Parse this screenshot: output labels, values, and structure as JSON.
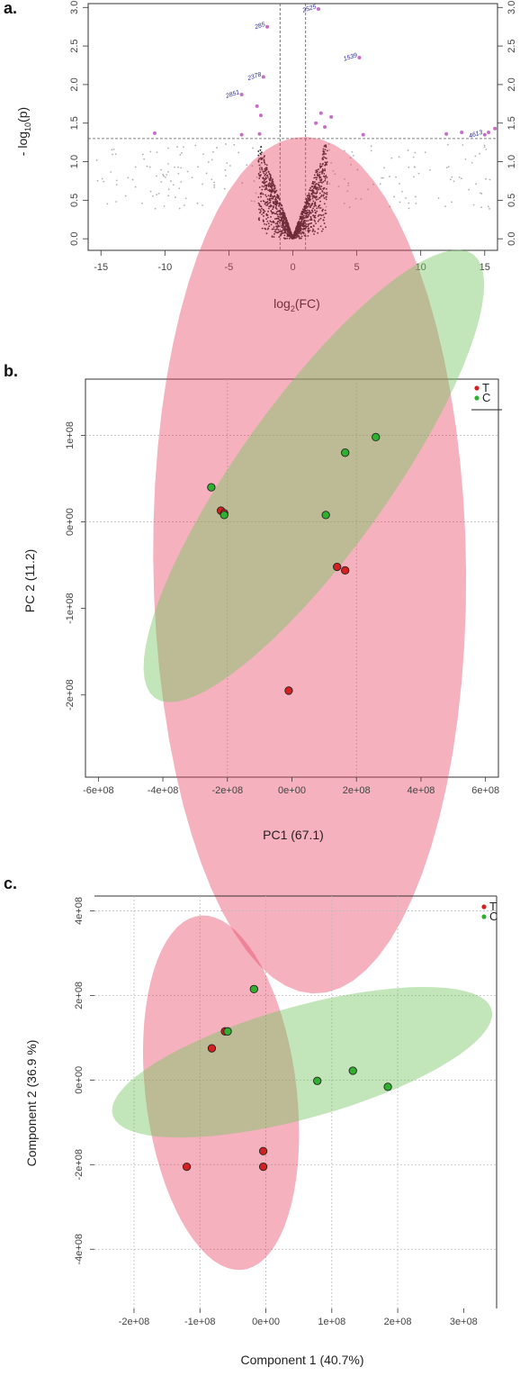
{
  "chart_data": [
    {
      "panel": "a.",
      "type": "scatter",
      "xlabel": "log",
      "xlabel_sub": "2",
      "xlabel_rest": "(FC)",
      "ylabel": "- log",
      "ylabel_sub": "10",
      "ylabel_rest": "(p)",
      "xlim": [
        -16,
        16
      ],
      "ylim": [
        -0.15,
        3.05
      ],
      "xticks": [
        -15,
        -10,
        -5,
        0,
        5,
        10,
        15
      ],
      "yticks": [
        0.0,
        0.5,
        1.0,
        1.5,
        2.0,
        2.5,
        3.0
      ],
      "ytick_labels": [
        "0.0",
        "0.5",
        "1.0",
        "1.5",
        "2.0",
        "2.5",
        "3.0"
      ],
      "threshold_y": 1.3,
      "threshold_x": [
        -1,
        1
      ],
      "colors": {
        "significant": "#c86ec8",
        "nonsignificant_dense": "#1a1a1a",
        "nonsignificant_sparse": "#b0b0b0",
        "annotation": "#2a2a9a"
      },
      "significant_points": [
        {
          "x": -2.0,
          "y": 2.75,
          "label": "285"
        },
        {
          "x": 2.0,
          "y": 2.98,
          "label": "2525"
        },
        {
          "x": -2.3,
          "y": 2.1,
          "label": "2378"
        },
        {
          "x": 5.2,
          "y": 2.35,
          "label": "1539"
        },
        {
          "x": -4.0,
          "y": 1.87,
          "label": "2851"
        },
        {
          "x": 15.0,
          "y": 1.35,
          "label": "4613"
        },
        {
          "x": -10.8,
          "y": 1.37
        },
        {
          "x": -2.8,
          "y": 1.72
        },
        {
          "x": -2.5,
          "y": 1.6
        },
        {
          "x": -2.6,
          "y": 1.36
        },
        {
          "x": -4.0,
          "y": 1.35
        },
        {
          "x": 2.2,
          "y": 1.63
        },
        {
          "x": 3.0,
          "y": 1.58
        },
        {
          "x": 1.8,
          "y": 1.5
        },
        {
          "x": 2.5,
          "y": 1.45
        },
        {
          "x": 5.5,
          "y": 1.35
        },
        {
          "x": 12.0,
          "y": 1.36
        },
        {
          "x": 13.2,
          "y": 1.38
        },
        {
          "x": 15.3,
          "y": 1.38
        },
        {
          "x": 15.8,
          "y": 1.43
        }
      ]
    },
    {
      "panel": "b.",
      "type": "scatter",
      "xlabel": "PC1 (67.1)",
      "ylabel": "PC 2 (11.2)",
      "xlim": [
        -640000000.0,
        640000000.0
      ],
      "ylim": [
        -295000000.0,
        165000000.0
      ],
      "xticks": [
        -600000000.0,
        -400000000.0,
        -200000000.0,
        0,
        200000000.0,
        400000000.0,
        600000000.0
      ],
      "xtick_labels": [
        "-6e+08",
        "-4e+08",
        "-2e+08",
        "0e+00",
        "2e+08",
        "4e+08",
        "6e+08"
      ],
      "yticks": [
        100000000.0,
        0,
        -100000000.0,
        -200000000.0
      ],
      "ytick_labels": [
        "1e+08",
        "0e+00",
        "-1e+08",
        "-2e+08"
      ],
      "grid_x": [
        -200000000.0,
        200000000.0
      ],
      "grid_y": [
        100000000.0,
        0
      ],
      "legend": {
        "placement": "top-right",
        "entries": [
          {
            "name": "T",
            "color": "#d42020"
          },
          {
            "name": "C",
            "color": "#2fb02f"
          }
        ]
      },
      "series": [
        {
          "name": "T",
          "color": "#d42020",
          "fill": "rgba(232,70,100,0.42)",
          "x": [
            -220000000.0,
            -210000000.0,
            140000000.0,
            165000000.0,
            -10000000.0
          ],
          "y": [
            13000000.0,
            10000000.0,
            -52000000.0,
            -56000000.0,
            -195000000.0
          ],
          "ellipse": {
            "cx": 55000000.0,
            "cy": -50000000.0,
            "major": 500000000.0,
            "minor": 480000000.0,
            "angle_deg": -60
          }
        },
        {
          "name": "C",
          "color": "#2fb02f",
          "fill": "rgba(120,200,100,0.45)",
          "x": [
            -250000000.0,
            -210000000.0,
            165000000.0,
            260000000.0,
            105000000.0
          ],
          "y": [
            40000000.0,
            8000000.0,
            80000000.0,
            98000000.0,
            8000000.0
          ],
          "ellipse": {
            "cx": 68000000.0,
            "cy": 53000000.0,
            "major": 575000000.0,
            "minor": 128000000.0,
            "angle_deg": 24
          }
        }
      ]
    },
    {
      "panel": "c.",
      "type": "scatter",
      "xlabel": "Component 1 (40.7%)",
      "ylabel": "Component 2 (36.9 %)",
      "xlim": [
        -260000000.0,
        350000000.0
      ],
      "ylim": [
        -540000000.0,
        435000000.0
      ],
      "xticks": [
        -200000000.0,
        -100000000.0,
        0,
        100000000.0,
        200000000.0,
        300000000.0
      ],
      "xtick_labels": [
        "-2e+08",
        "-1e+08",
        "0e+00",
        "1e+08",
        "2e+08",
        "3e+08"
      ],
      "yticks": [
        400000000.0,
        200000000.0,
        0,
        -200000000.0,
        -400000000.0
      ],
      "ytick_labels": [
        "4e+08",
        "2e+08",
        "0e+00",
        "-2e+08",
        "-4e+08"
      ],
      "grid_x": [
        -200000000.0,
        -100000000.0,
        0,
        100000000.0,
        200000000.0
      ],
      "grid_y": [
        400000000.0,
        200000000.0,
        0,
        -200000000.0,
        -400000000.0
      ],
      "legend": {
        "placement": "top-right",
        "entries": [
          {
            "name": "T",
            "color": "#d42020"
          },
          {
            "name": "C",
            "color": "#2fb02f"
          }
        ]
      },
      "series": [
        {
          "name": "T",
          "color": "#d42020",
          "fill": "rgba(232,70,100,0.42)",
          "x": [
            -82000000.0,
            -62000000.0,
            -120000000.0,
            -4000000.0,
            -4000000.0
          ],
          "y": [
            75000000.0,
            115000000.0,
            -205000000.0,
            -168000000.0,
            -205000000.0
          ],
          "ellipse": {
            "cx": -68000000.0,
            "cy": -30000000.0,
            "major": 420000000.0,
            "minor": 115000000.0,
            "angle_deg": 94
          }
        },
        {
          "name": "C",
          "color": "#2fb02f",
          "fill": "rgba(120,200,100,0.45)",
          "x": [
            -18000000.0,
            -58000000.0,
            78000000.0,
            132000000.0,
            185000000.0
          ],
          "y": [
            215000000.0,
            115000000.0,
            -2000000.0,
            22000000.0,
            -16000000.0
          ],
          "ellipse": {
            "cx": 55000000.0,
            "cy": 42000000.0,
            "major": 315000000.0,
            "minor": 125000000.0,
            "angle_deg": 26
          }
        }
      ]
    }
  ]
}
